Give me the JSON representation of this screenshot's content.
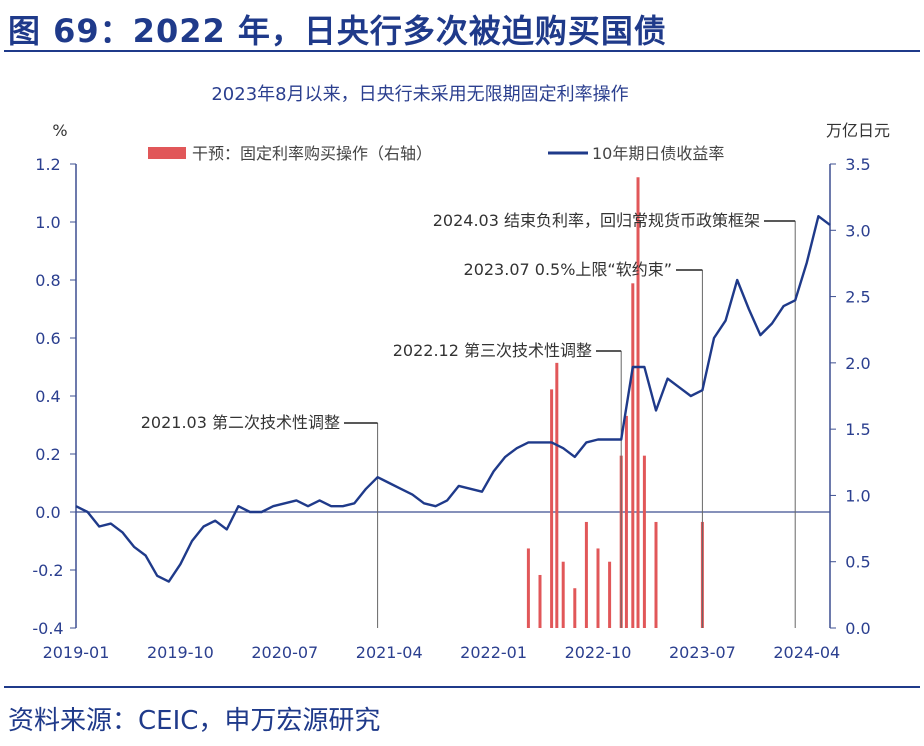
{
  "header": {
    "title": "图 69：2022 年，日央行多次被迫购买国债"
  },
  "footer": {
    "source": "资料来源：CEIC，申万宏源研究"
  },
  "colors": {
    "line": "#1f3a8a",
    "bar": "#e15759",
    "axis": "#3d4f91",
    "annot": "#666666"
  },
  "chart_data": {
    "type": "line+bar",
    "title": "2023年8月以来，日央行未采用无限期固定利率操作",
    "ylabel_left": "%",
    "ylabel_right": "万亿日元",
    "ylim_left": [
      -0.4,
      1.2
    ],
    "ylim_right": [
      0.0,
      3.5
    ],
    "yticks_left": [
      "1.2",
      "1.0",
      "0.8",
      "0.6",
      "0.4",
      "0.2",
      "0.0",
      "-0.2",
      "-0.4"
    ],
    "yticks_right": [
      "3.5",
      "3.0",
      "2.5",
      "2.0",
      "1.5",
      "1.0",
      "0.5",
      "0.0"
    ],
    "xticks": [
      "2019-01",
      "2019-10",
      "2020-07",
      "2021-04",
      "2022-01",
      "2022-10",
      "2023-07",
      "2024-04"
    ],
    "legend_position": "top-center",
    "series": [
      {
        "name": "10年期日债收益率",
        "type": "line",
        "axis": "left",
        "x": [
          "2019-01",
          "2019-02",
          "2019-03",
          "2019-04",
          "2019-05",
          "2019-06",
          "2019-07",
          "2019-08",
          "2019-09",
          "2019-10",
          "2019-11",
          "2019-12",
          "2020-01",
          "2020-02",
          "2020-03",
          "2020-04",
          "2020-05",
          "2020-06",
          "2020-07",
          "2020-08",
          "2020-09",
          "2020-10",
          "2020-11",
          "2020-12",
          "2021-01",
          "2021-02",
          "2021-03",
          "2021-04",
          "2021-05",
          "2021-06",
          "2021-07",
          "2021-08",
          "2021-09",
          "2021-10",
          "2021-11",
          "2021-12",
          "2022-01",
          "2022-02",
          "2022-03",
          "2022-04",
          "2022-05",
          "2022-06",
          "2022-07",
          "2022-08",
          "2022-09",
          "2022-10",
          "2022-11",
          "2022-12",
          "2023-01",
          "2023-02",
          "2023-03",
          "2023-04",
          "2023-05",
          "2023-06",
          "2023-07",
          "2023-08",
          "2023-09",
          "2023-10",
          "2023-11",
          "2023-12",
          "2024-01",
          "2024-02",
          "2024-03",
          "2024-04",
          "2024-05",
          "2024-06"
        ],
        "values": [
          0.02,
          0.0,
          -0.05,
          -0.04,
          -0.07,
          -0.12,
          -0.15,
          -0.22,
          -0.24,
          -0.18,
          -0.1,
          -0.05,
          -0.03,
          -0.06,
          0.02,
          0.0,
          0.0,
          0.02,
          0.03,
          0.04,
          0.02,
          0.04,
          0.02,
          0.02,
          0.03,
          0.08,
          0.12,
          0.1,
          0.08,
          0.06,
          0.03,
          0.02,
          0.04,
          0.09,
          0.08,
          0.07,
          0.14,
          0.19,
          0.22,
          0.24,
          0.24,
          0.24,
          0.22,
          0.19,
          0.24,
          0.25,
          0.25,
          0.25,
          0.5,
          0.5,
          0.35,
          0.46,
          0.43,
          0.4,
          0.42,
          0.6,
          0.66,
          0.8,
          0.7,
          0.61,
          0.65,
          0.71,
          0.73,
          0.86,
          1.02,
          0.99
        ]
      },
      {
        "name": "干预：固定利率购买操作（右轴）",
        "type": "bar",
        "axis": "right",
        "x": [
          "2022-04",
          "2022-05",
          "2022-06",
          "2022-06b",
          "2022-07",
          "2022-08",
          "2022-09",
          "2022-10",
          "2022-11",
          "2022-12",
          "2022-12b",
          "2023-01",
          "2023-01b",
          "2023-02",
          "2023-03",
          "2023-07"
        ],
        "values": [
          0.6,
          0.4,
          1.8,
          2.0,
          0.5,
          0.3,
          0.8,
          0.6,
          0.5,
          1.3,
          1.6,
          2.6,
          3.4,
          1.3,
          0.8,
          0.8
        ]
      }
    ],
    "annotations": [
      {
        "text": "2021.03 第二次技术性调整",
        "x": "2021-03"
      },
      {
        "text": "2022.12 第三次技术性调整",
        "x": "2022-12"
      },
      {
        "text": "2023.07 0.5%上限“软约束”",
        "x": "2023-07"
      },
      {
        "text": "2024.03 结束负利率，回归常规货币政策框架",
        "x": "2024-03"
      }
    ]
  }
}
